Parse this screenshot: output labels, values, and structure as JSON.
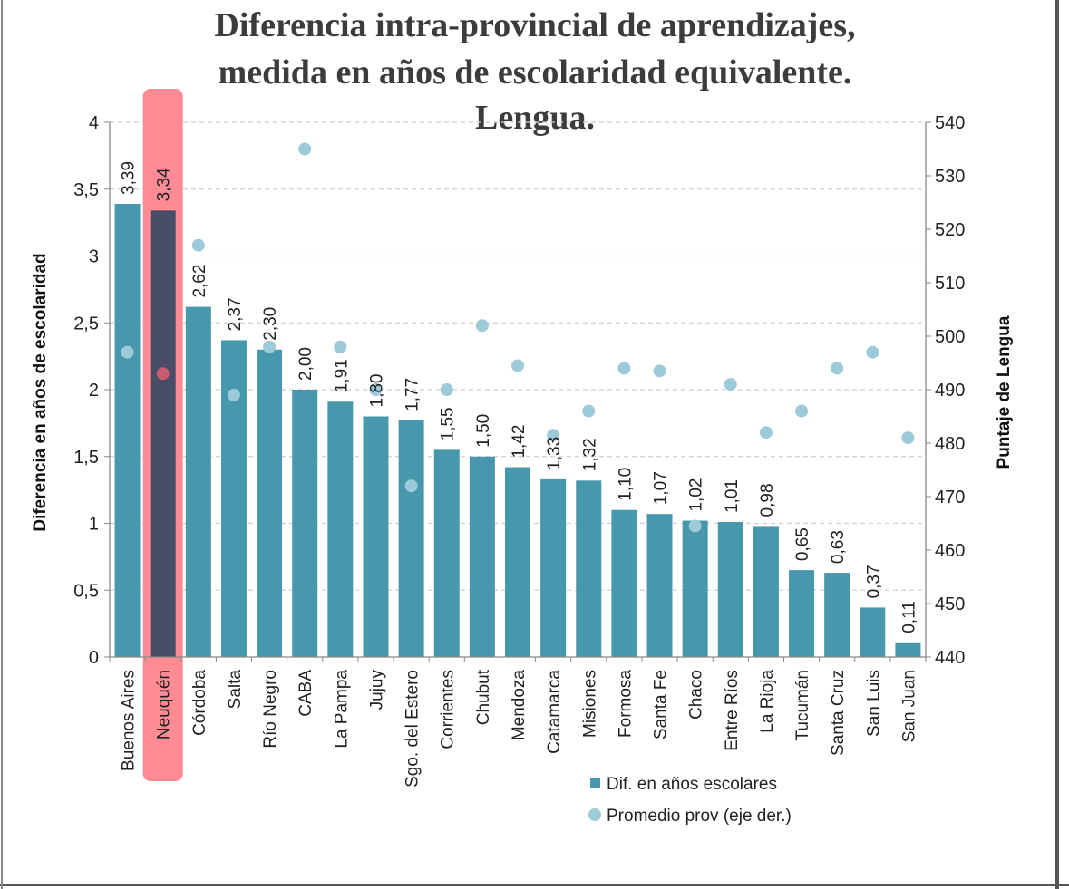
{
  "chart_data": {
    "type": "bar",
    "title_lines": [
      "Diferencia intra-provincial de aprendizajes,",
      "medida en años de escolaridad equivalente.",
      "Lengua."
    ],
    "ylabel": "Diferencia en años de escolaridad",
    "y2label": "Puntaje de Lengua",
    "ylim": [
      0,
      4
    ],
    "y2lim": [
      440,
      540
    ],
    "yticks": [
      "0",
      "0,5",
      "1",
      "1,5",
      "2",
      "2,5",
      "3",
      "3,5",
      "4"
    ],
    "y2ticks": [
      "440",
      "450",
      "460",
      "470",
      "480",
      "490",
      "500",
      "510",
      "520",
      "530",
      "540"
    ],
    "grid": "horizontal dashed",
    "legend_position": "bottom",
    "highlight_category": "Neuquén",
    "categories": [
      "Buenos Aires",
      "Neuquén",
      "Córdoba",
      "Salta",
      "Río Negro",
      "CABA",
      "La Pampa",
      "Jujuy",
      "Sgo. del Estero",
      "Corrientes",
      "Chubut",
      "Mendoza",
      "Catamarca",
      "Misiones",
      "Formosa",
      "Santa Fe",
      "Chaco",
      "Entre Ríos",
      "La Rioja",
      "Tucumán",
      "Santa Cruz",
      "San Luis",
      "San Juan"
    ],
    "series": [
      {
        "name": "Dif. en años escolares",
        "type": "bar",
        "axis": "left",
        "color": "#4797ad",
        "values": [
          3.39,
          3.34,
          2.62,
          2.37,
          2.3,
          2.0,
          1.91,
          1.8,
          1.77,
          1.55,
          1.5,
          1.42,
          1.33,
          1.32,
          1.1,
          1.07,
          1.02,
          1.01,
          0.98,
          0.65,
          0.63,
          0.37,
          0.11
        ],
        "labels": [
          "3,39",
          "3,34",
          "2,62",
          "2,37",
          "2,30",
          "2,00",
          "1,91",
          "1,80",
          "1,77",
          "1,55",
          "1,50",
          "1,42",
          "1,33",
          "1,32",
          "1,10",
          "1,07",
          "1,02",
          "1,01",
          "0,98",
          "0,65",
          "0,63",
          "0,37",
          "0,11"
        ]
      },
      {
        "name": "Promedio prov (eje der.)",
        "type": "scatter",
        "axis": "right",
        "color": "#9ccad9",
        "values": [
          497,
          493,
          517,
          489,
          498,
          535,
          498,
          490,
          472,
          490,
          502,
          494.5,
          481.5,
          486,
          494,
          493.5,
          464.5,
          491,
          482,
          486,
          494,
          497,
          481
        ]
      }
    ]
  }
}
